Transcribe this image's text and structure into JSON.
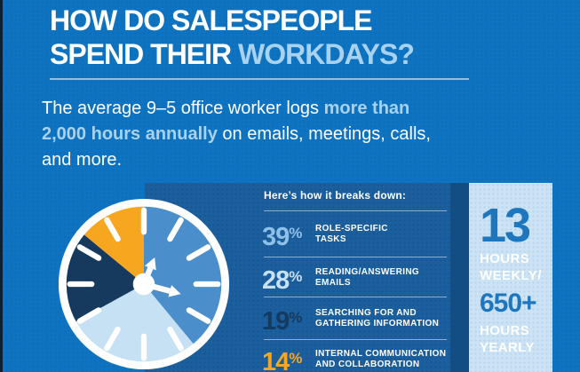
{
  "title": {
    "line1": "HOW DO SALESPEOPLE",
    "line2_normal": "SPEND THEIR ",
    "line2_highlight": "WORKDAYS?"
  },
  "subtitle": {
    "l1_normal": "The average 9–5 office worker logs ",
    "l1_highlight": "more than",
    "l2_highlight": "2,000 hours annually",
    "l2_normal": " on emails, meetings, calls,",
    "l3_normal": "and more."
  },
  "breakdown": {
    "heading": "Here’s how it breaks down:",
    "percent_sign": "%",
    "items": [
      {
        "percent": "39",
        "label_line1": "ROLE-SPECIFIC",
        "label_line2": "TASKS",
        "color": "#8fc1e8"
      },
      {
        "percent": "28",
        "label_line1": "READING/ANSWERING",
        "label_line2": "EMAILS",
        "color": "#c6e0f4"
      },
      {
        "percent": "19",
        "label_line1": "SEARCHING FOR AND",
        "label_line2": "GATHERING INFORMATION",
        "color": "#16395e"
      },
      {
        "percent": "14",
        "label_line1": "INTERNAL COMMUNICATION",
        "label_line2": "AND COLLABORATION",
        "color": "#f7a71f"
      }
    ]
  },
  "stats": {
    "weekly_value": "13",
    "weekly_label1": "HOURS",
    "weekly_label2": "WEEKLY/",
    "yearly_value": "650+",
    "yearly_label1": "HOURS",
    "yearly_label2": "YEARLY"
  },
  "colors": {
    "background": "#0e74c2",
    "left_edge": "#0d2133",
    "panel": "#1b5f9e",
    "accent_strip": "#124d84",
    "stat_panel": "#cbe3f5",
    "highlight_text": "#a9d2ef",
    "stat_value": "#1e76bc"
  },
  "chart_data": {
    "type": "pie",
    "title": "How do salespeople spend their workdays?",
    "subtitle": "The average 9–5 office worker logs more than 2,000 hours annually on emails, meetings, calls, and more.",
    "categories": [
      "Role-specific tasks",
      "Reading/answering emails",
      "Searching for and gathering information",
      "Internal communication and collaboration"
    ],
    "values": [
      39,
      28,
      19,
      14
    ],
    "unit": "percent",
    "colors": [
      "#4a8ecb",
      "#c6e0f4",
      "#16395e",
      "#f7a71f"
    ],
    "layout": "pie drawn as a clock face, starting at 12 o'clock, clockwise; white ring, hour ticks and arrow hands overlaid",
    "annotations": [
      "13 hours weekly",
      "650+ hours yearly"
    ],
    "legend_position": "right panel list"
  }
}
